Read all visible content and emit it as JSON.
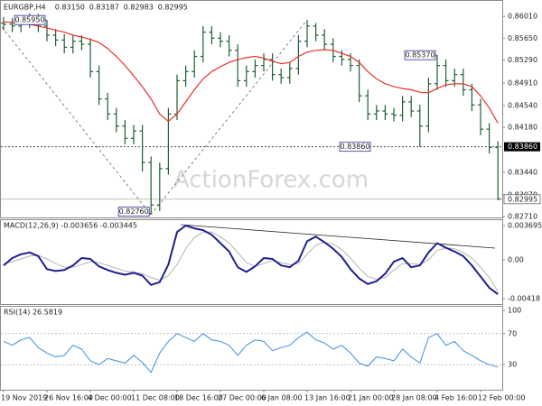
{
  "chart_data": [
    {
      "type": "ohlc",
      "title": "EURGBP,H4",
      "header_values": [
        "0.83150",
        "0.83187",
        "0.82983",
        "0.82995"
      ],
      "watermark": "ActionForex.com",
      "categories": [
        "19 Nov 2019",
        null,
        null,
        null,
        null,
        "26 Nov 16:00",
        null,
        null,
        null,
        null,
        "4 Dec 00:00",
        null,
        null,
        null,
        null,
        "11 Dec 08:00",
        null,
        null,
        null,
        null,
        "18 Dec 16:00",
        null,
        null,
        null,
        null,
        "27 Dec 00:00",
        null,
        null,
        null,
        null,
        "6 Jan 08:00",
        null,
        null,
        null,
        null,
        "13 Jan 16:00",
        null,
        null,
        null,
        null,
        "21 Jan 00:00",
        null,
        null,
        null,
        null,
        "28 Jan 08:00",
        null,
        null,
        null,
        null,
        "4 Feb 16:00",
        null,
        null,
        null,
        null,
        "12 Feb 00:00",
        null,
        null
      ],
      "open": [
        0.859,
        0.8588,
        0.8585,
        0.8592,
        0.86,
        0.8585,
        0.857,
        0.8562,
        0.855,
        0.856,
        0.8555,
        0.851,
        0.8465,
        0.844,
        0.842,
        0.84,
        0.8412,
        0.836,
        0.829,
        0.835,
        0.844,
        0.8495,
        0.851,
        0.8535,
        0.8575,
        0.8565,
        0.856,
        0.8545,
        0.8495,
        0.851,
        0.852,
        0.853,
        0.8505,
        0.85,
        0.8515,
        0.856,
        0.8585,
        0.857,
        0.8555,
        0.8535,
        0.853,
        0.852,
        0.847,
        0.844,
        0.8445,
        0.844,
        0.8438,
        0.846,
        0.8445,
        0.842,
        0.849,
        0.852,
        0.8495,
        0.8505,
        0.848,
        0.8455,
        0.8415,
        0.8385
      ],
      "high": [
        0.86,
        0.8598,
        0.8602,
        0.8606,
        0.8605,
        0.8595,
        0.858,
        0.8572,
        0.857,
        0.857,
        0.8565,
        0.852,
        0.8475,
        0.845,
        0.843,
        0.8422,
        0.8422,
        0.837,
        0.836,
        0.845,
        0.8505,
        0.852,
        0.8545,
        0.8585,
        0.8585,
        0.8575,
        0.857,
        0.8555,
        0.852,
        0.853,
        0.854,
        0.854,
        0.8515,
        0.8525,
        0.857,
        0.8595,
        0.859,
        0.858,
        0.8565,
        0.8545,
        0.854,
        0.853,
        0.848,
        0.8455,
        0.8455,
        0.845,
        0.847,
        0.847,
        0.8455,
        0.85,
        0.8537,
        0.853,
        0.8515,
        0.8515,
        0.849,
        0.8465,
        0.8425,
        0.8395
      ],
      "low": [
        0.8578,
        0.8575,
        0.8575,
        0.8582,
        0.8575,
        0.856,
        0.8552,
        0.854,
        0.854,
        0.8545,
        0.85,
        0.8455,
        0.843,
        0.841,
        0.839,
        0.839,
        0.8345,
        0.8276,
        0.828,
        0.834,
        0.843,
        0.8485,
        0.85,
        0.8525,
        0.8555,
        0.855,
        0.8535,
        0.8485,
        0.8485,
        0.85,
        0.851,
        0.8495,
        0.849,
        0.849,
        0.8505,
        0.855,
        0.856,
        0.8545,
        0.8525,
        0.852,
        0.851,
        0.846,
        0.843,
        0.843,
        0.843,
        0.8428,
        0.8428,
        0.8435,
        0.8386,
        0.841,
        0.848,
        0.8485,
        0.8485,
        0.847,
        0.8445,
        0.8405,
        0.8375,
        0.8298
      ],
      "close": [
        0.8588,
        0.8585,
        0.8592,
        0.86,
        0.8585,
        0.857,
        0.8562,
        0.855,
        0.856,
        0.8555,
        0.851,
        0.8465,
        0.844,
        0.842,
        0.84,
        0.8412,
        0.836,
        0.829,
        0.835,
        0.844,
        0.8495,
        0.851,
        0.8535,
        0.8575,
        0.8565,
        0.856,
        0.8545,
        0.8495,
        0.851,
        0.852,
        0.853,
        0.8505,
        0.85,
        0.8515,
        0.856,
        0.8585,
        0.857,
        0.8555,
        0.8535,
        0.853,
        0.852,
        0.847,
        0.844,
        0.8445,
        0.844,
        0.8438,
        0.846,
        0.8445,
        0.842,
        0.849,
        0.852,
        0.8495,
        0.8505,
        0.848,
        0.8455,
        0.8415,
        0.8385,
        0.83
      ],
      "color": "#1f5f33",
      "overlay": {
        "color": "#e8322b",
        "values": [
          0.8592,
          0.8591,
          0.859,
          0.8588,
          0.8585,
          0.8582,
          0.8578,
          0.8575,
          0.857,
          0.8567,
          0.8563,
          0.8558,
          0.8548,
          0.8535,
          0.852,
          0.8503,
          0.8485,
          0.8465,
          0.844,
          0.8428,
          0.844,
          0.846,
          0.848,
          0.8498,
          0.851,
          0.8518,
          0.8525,
          0.853,
          0.8533,
          0.8535,
          0.8532,
          0.8527,
          0.8523,
          0.8525,
          0.8535,
          0.8542,
          0.8545,
          0.8546,
          0.8545,
          0.854,
          0.8535,
          0.8525,
          0.851,
          0.8498,
          0.849,
          0.8485,
          0.8482,
          0.848,
          0.8476,
          0.8475,
          0.8482,
          0.8488,
          0.849,
          0.849,
          0.8485,
          0.847,
          0.845,
          0.8425
        ]
      },
      "annotations": [
        {
          "value": 0.8595,
          "label": "0.85950"
        },
        {
          "value": 0.8537,
          "label": "0.85370"
        },
        {
          "value": 0.8276,
          "label": "0.82760"
        }
      ],
      "levels": [
        {
          "value": 0.8386,
          "label": "0.83860"
        }
      ],
      "last": {
        "value": 0.82995,
        "label": "0.82995"
      },
      "ylim": [
        0.8268,
        0.8628
      ],
      "yticks": [
        {
          "value": 0.8601,
          "label": "0.86010"
        },
        {
          "value": 0.8565,
          "label": "0.85650"
        },
        {
          "value": 0.8529,
          "label": "0.85290"
        },
        {
          "value": 0.8491,
          "label": "0.84910"
        },
        {
          "value": 0.8454,
          "label": "0.84540"
        },
        {
          "value": 0.8418,
          "label": "0.84180"
        },
        {
          "value": 0.8344,
          "label": "0.83440"
        },
        {
          "value": 0.8307,
          "label": "0.83070"
        },
        {
          "value": 0.8271,
          "label": "0.82710"
        }
      ]
    },
    {
      "type": "macd",
      "title": "MACD(12,26,9) -0.003656 -0.003445",
      "series": [
        {
          "color": "#1f1f8f",
          "values": [
            -0.0006,
            0.0002,
            0.0006,
            0.0008,
            0.0004,
            -0.001,
            -0.0012,
            -0.0011,
            -0.0006,
            0.0002,
            0.0001,
            -0.0007,
            -0.0011,
            -0.0014,
            -0.0016,
            -0.0014,
            -0.0017,
            -0.0027,
            -0.0024,
            -0.0005,
            0.003,
            0.0037,
            0.0034,
            0.0032,
            0.0027,
            0.0018,
            0.0009,
            -0.0008,
            -0.0013,
            -0.0007,
            0.0002,
            0.0001,
            -0.0006,
            -0.0008,
            -0.0001,
            0.002,
            0.0025,
            0.0019,
            0.0012,
            0.0003,
            -0.001,
            -0.002,
            -0.0026,
            -0.0023,
            -0.0015,
            -0.0002,
            0.0002,
            -0.0008,
            -0.0006,
            0.0008,
            0.0018,
            0.0013,
            0.0009,
            0.0004,
            -0.0006,
            -0.0018,
            -0.003,
            -0.0037
          ]
        },
        {
          "color": "#b4b4b4",
          "values": [
            -0.0004,
            -0.0002,
            0.0001,
            0.0004,
            0.0005,
            0.0001,
            -0.0004,
            -0.0008,
            -0.0008,
            -0.0005,
            -0.0002,
            -0.0003,
            -0.0006,
            -0.0009,
            -0.0012,
            -0.0013,
            -0.0015,
            -0.0019,
            -0.0022,
            -0.0017,
            -0.0005,
            0.0012,
            0.0024,
            0.003,
            0.003,
            0.0025,
            0.0018,
            0.0008,
            -0.0003,
            -0.0007,
            -0.0004,
            -0.0001,
            -0.0003,
            -0.0005,
            -0.0004,
            0.0006,
            0.0016,
            0.0019,
            0.0017,
            0.0011,
            0.0002,
            -0.0009,
            -0.0018,
            -0.0021,
            -0.0019,
            -0.0011,
            -0.0004,
            -0.0004,
            -0.0005,
            0.0,
            0.001,
            0.0013,
            0.0012,
            0.0008,
            0.0002,
            -0.0008,
            -0.0019,
            -0.0034
          ]
        }
      ],
      "ylim": [
        -0.00486,
        0.00428
      ],
      "yticks": [
        0.003695,
        {
          "value": 0,
          "label": "0.00"
        },
        -0.00418
      ],
      "grid": false
    },
    {
      "type": "line",
      "title": "RSI(14) 26.5819",
      "color": "#3d8ede",
      "values": [
        60,
        55,
        62,
        65,
        52,
        45,
        40,
        42,
        55,
        50,
        35,
        30,
        38,
        35,
        32,
        42,
        33,
        20,
        45,
        60,
        70,
        65,
        60,
        70,
        62,
        60,
        55,
        42,
        55,
        62,
        60,
        48,
        52,
        55,
        65,
        72,
        62,
        58,
        50,
        55,
        45,
        32,
        28,
        40,
        38,
        35,
        50,
        40,
        32,
        65,
        70,
        55,
        60,
        48,
        42,
        35,
        30,
        27
      ],
      "ylim": [
        0,
        100
      ],
      "yticks": [
        100,
        70,
        30
      ],
      "grid": true
    }
  ]
}
